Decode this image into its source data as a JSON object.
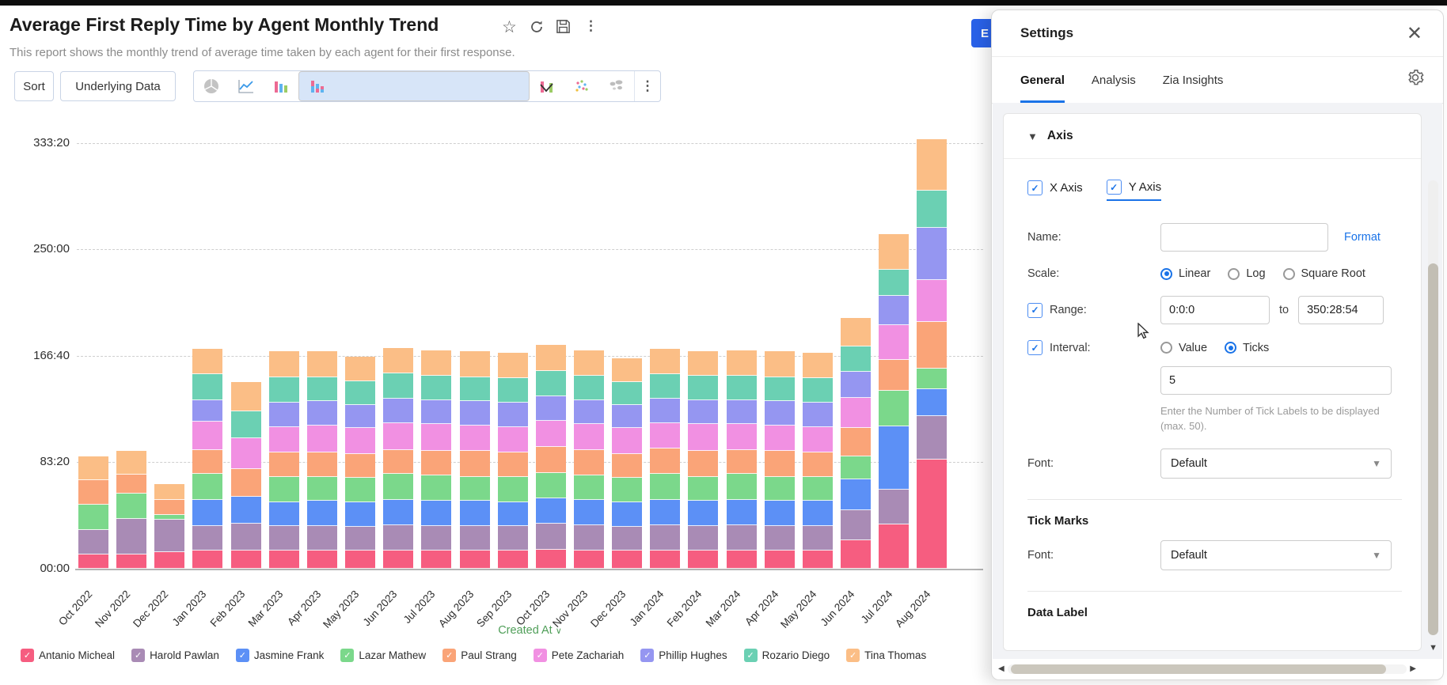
{
  "header": {
    "title": "Average First Reply Time by Agent Monthly Trend",
    "subtitle": "This report shows the monthly trend of average time taken by each agent for their first response."
  },
  "toolbar": {
    "sort_label": "Sort",
    "underlying_data_label": "Underlying Data",
    "chart_types": [
      "pie",
      "line",
      "bar",
      "stacked-bar",
      "bar-line-combo",
      "scatter",
      "map"
    ],
    "selected_chart_type": "stacked-bar"
  },
  "edit_button_label": "E",
  "chart_data": {
    "type": "bar",
    "stacked": true,
    "xlabel": "Created At",
    "ylabel": "",
    "y_ticks": [
      "00:00",
      "83:20",
      "166:40",
      "250:00",
      "333:20"
    ],
    "y_tick_hours": [
      0,
      83.333,
      166.667,
      250,
      333.333
    ],
    "ymax_hours": 350.482,
    "y_format": "hours:minutes",
    "grid": "dashed-horizontal",
    "legend_position": "bottom",
    "categories": [
      "Oct 2022",
      "Nov 2022",
      "Dec 2022",
      "Jan 2023",
      "Feb 2023",
      "Mar 2023",
      "Apr 2023",
      "May 2023",
      "Jun 2023",
      "Jul 2023",
      "Aug 2023",
      "Sep 2023",
      "Oct 2023",
      "Nov 2023",
      "Dec 2023",
      "Jan 2024",
      "Feb 2024",
      "Mar 2024",
      "Apr 2024",
      "May 2024",
      "Jun 2024",
      "Jul 2024",
      "Aug 2024"
    ],
    "series": [
      {
        "name": "Antanio Micheal",
        "color": "#F65D80",
        "values": [
          11,
          11,
          13,
          14,
          14,
          14,
          14,
          14,
          14,
          14,
          14,
          14,
          15,
          14,
          14,
          14,
          14,
          14,
          14,
          14,
          22,
          35,
          86
        ]
      },
      {
        "name": "Harold Pawlan",
        "color": "#A98BB5",
        "values": [
          19,
          28,
          26,
          19,
          21,
          19,
          19,
          19,
          20,
          19,
          19,
          19,
          20,
          20,
          19,
          20,
          19,
          20,
          19,
          19,
          24,
          27,
          34
        ]
      },
      {
        "name": "Jasmine Frank",
        "color": "#5C90F6",
        "values": [
          0,
          0,
          0,
          21,
          21,
          19,
          20,
          19,
          20,
          20,
          20,
          19,
          20,
          20,
          19,
          20,
          20,
          20,
          20,
          20,
          24,
          50,
          21
        ]
      },
      {
        "name": "Lazar Mathew",
        "color": "#7BD88B",
        "values": [
          20,
          20,
          3,
          20,
          0,
          20,
          19,
          19,
          20,
          20,
          19,
          20,
          20,
          19,
          19,
          20,
          19,
          20,
          19,
          19,
          18,
          28,
          16
        ]
      },
      {
        "name": "Paul Strang",
        "color": "#FAA478",
        "values": [
          19,
          15,
          12,
          19,
          22,
          19,
          19,
          19,
          19,
          19,
          20,
          19,
          20,
          20,
          19,
          20,
          20,
          19,
          20,
          19,
          22,
          24,
          36
        ]
      },
      {
        "name": "Pete Zachariah",
        "color": "#F190E2",
        "values": [
          0,
          0,
          0,
          22,
          24,
          20,
          21,
          20,
          21,
          21,
          20,
          20,
          21,
          20,
          20,
          20,
          21,
          20,
          20,
          20,
          24,
          27,
          33
        ]
      },
      {
        "name": "Phillip Hughes",
        "color": "#9596F1",
        "values": [
          0,
          0,
          0,
          17,
          0,
          19,
          19,
          18,
          19,
          19,
          19,
          19,
          19,
          19,
          18,
          19,
          19,
          19,
          19,
          19,
          20,
          23,
          41
        ]
      },
      {
        "name": "Rozario Diego",
        "color": "#6BD0B3",
        "values": [
          0,
          0,
          0,
          20,
          21,
          20,
          19,
          19,
          20,
          19,
          19,
          19,
          20,
          19,
          18,
          19,
          19,
          19,
          19,
          19,
          20,
          20,
          29
        ]
      },
      {
        "name": "Tina Thomas",
        "color": "#FBBE86",
        "values": [
          19,
          18,
          12,
          20,
          23,
          20,
          20,
          19,
          20,
          20,
          20,
          20,
          20,
          20,
          19,
          20,
          19,
          20,
          20,
          20,
          22,
          28,
          40
        ]
      }
    ]
  },
  "settings": {
    "title": "Settings",
    "tabs": [
      {
        "label": "General",
        "active": true
      },
      {
        "label": "Analysis",
        "active": false
      },
      {
        "label": "Zia Insights",
        "active": false
      }
    ],
    "axis": {
      "section_title": "Axis",
      "x_axis_label": "X Axis",
      "x_axis_checked": true,
      "y_axis_label": "Y Axis",
      "y_axis_checked": true,
      "active_axis": "Y Axis",
      "name_label": "Name:",
      "name_value": "",
      "format_label": "Format",
      "scale_label": "Scale:",
      "scale_options": [
        "Linear",
        "Log",
        "Square Root"
      ],
      "scale_selected": "Linear",
      "range_label": "Range:",
      "range_checked": true,
      "range_from": "0:0:0",
      "range_to_word": "to",
      "range_to": "350:28:54",
      "interval_label": "Interval:",
      "interval_checked": true,
      "interval_options": [
        "Value",
        "Ticks"
      ],
      "interval_selected": "Ticks",
      "interval_value": "5",
      "interval_help": "Enter the Number of Tick Labels to be displayed (max. 50).",
      "font_label": "Font:",
      "font_value": "Default"
    },
    "tick_marks": {
      "section_title": "Tick Marks",
      "font_label": "Font:",
      "font_value": "Default"
    },
    "data_label": {
      "section_title": "Data Label"
    }
  }
}
